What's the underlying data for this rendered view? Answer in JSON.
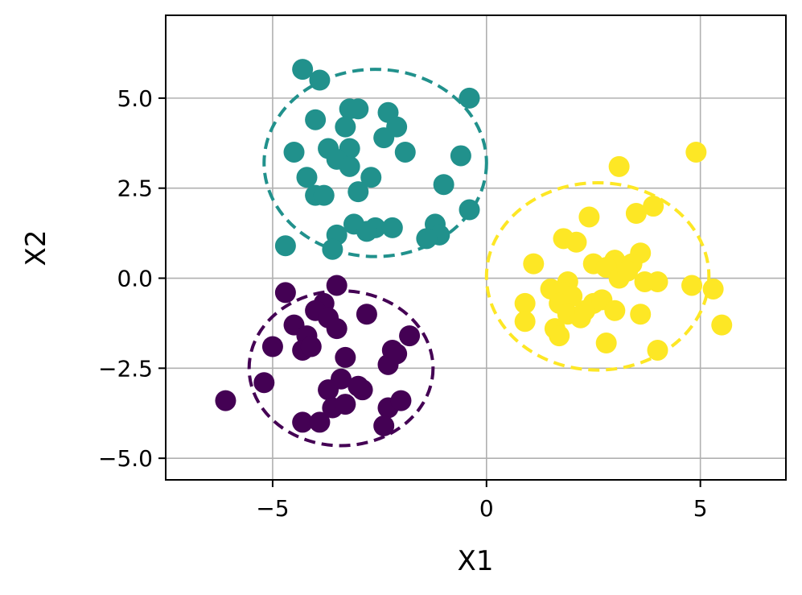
{
  "chart_data": {
    "type": "scatter",
    "title": "",
    "xlabel": "X1",
    "ylabel": "X2",
    "xlim": [
      -7.5,
      7
    ],
    "ylim": [
      -5.6,
      7.3
    ],
    "xticks": [
      -5,
      0,
      5
    ],
    "xtick_labels": [
      "−5",
      "0",
      "5"
    ],
    "yticks": [
      -5,
      -2.5,
      0,
      2.5,
      5
    ],
    "ytick_labels": [
      "−5.0",
      "−2.5",
      "0.0",
      "2.5",
      "5.0"
    ],
    "grid": true,
    "legend": "none",
    "series": [
      {
        "color": "#440154",
        "points": [
          [
            -4.7,
            -0.4
          ],
          [
            -3.5,
            -0.2
          ],
          [
            -3.8,
            -0.7
          ],
          [
            -4.0,
            -0.9
          ],
          [
            -3.7,
            -1.1
          ],
          [
            -4.5,
            -1.3
          ],
          [
            -4.2,
            -1.6
          ],
          [
            -3.5,
            -1.4
          ],
          [
            -2.8,
            -1.0
          ],
          [
            -4.3,
            -2.0
          ],
          [
            -4.1,
            -1.9
          ],
          [
            -5.0,
            -1.9
          ],
          [
            -3.3,
            -2.2
          ],
          [
            -2.2,
            -2.0
          ],
          [
            -1.8,
            -1.6
          ],
          [
            -2.3,
            -2.4
          ],
          [
            -3.4,
            -2.8
          ],
          [
            -3.7,
            -3.1
          ],
          [
            -2.9,
            -3.1
          ],
          [
            -5.2,
            -2.9
          ],
          [
            -6.1,
            -3.4
          ],
          [
            -3.6,
            -3.6
          ],
          [
            -3.3,
            -3.5
          ],
          [
            -2.3,
            -3.6
          ],
          [
            -2.0,
            -3.4
          ],
          [
            -2.4,
            -4.1
          ],
          [
            -4.3,
            -4.0
          ],
          [
            -3.9,
            -4.0
          ],
          [
            -3.0,
            -3.0
          ],
          [
            -2.1,
            -2.1
          ]
        ],
        "circle": {
          "cx": -3.4,
          "cy": -2.5,
          "r": 2.15
        }
      },
      {
        "color": "#21918c",
        "points": [
          [
            -4.3,
            5.8
          ],
          [
            -3.9,
            5.5
          ],
          [
            -3.2,
            4.7
          ],
          [
            -3.0,
            4.7
          ],
          [
            -2.3,
            4.6
          ],
          [
            -2.1,
            4.2
          ],
          [
            -3.3,
            4.2
          ],
          [
            -4.0,
            4.4
          ],
          [
            -0.4,
            5.0
          ],
          [
            -4.5,
            3.5
          ],
          [
            -3.7,
            3.6
          ],
          [
            -3.2,
            3.6
          ],
          [
            -2.4,
            3.9
          ],
          [
            -1.9,
            3.5
          ],
          [
            -3.5,
            3.3
          ],
          [
            -3.2,
            3.1
          ],
          [
            -4.2,
            2.8
          ],
          [
            -2.7,
            2.8
          ],
          [
            -0.6,
            3.4
          ],
          [
            -1.0,
            2.6
          ],
          [
            -3.0,
            2.4
          ],
          [
            -4.0,
            2.3
          ],
          [
            -3.8,
            2.3
          ],
          [
            -0.4,
            1.9
          ],
          [
            -3.1,
            1.5
          ],
          [
            -2.6,
            1.4
          ],
          [
            -2.2,
            1.4
          ],
          [
            -1.2,
            1.5
          ],
          [
            -3.5,
            1.2
          ],
          [
            -1.1,
            1.2
          ],
          [
            -1.4,
            1.1
          ],
          [
            -4.7,
            0.9
          ],
          [
            -3.6,
            0.8
          ],
          [
            -2.8,
            1.3
          ]
        ],
        "circle": {
          "cx": -2.6,
          "cy": 3.2,
          "r": 2.6
        }
      },
      {
        "color": "#fde725",
        "points": [
          [
            4.9,
            3.5
          ],
          [
            3.1,
            3.1
          ],
          [
            3.9,
            2.0
          ],
          [
            3.5,
            1.8
          ],
          [
            2.4,
            1.7
          ],
          [
            1.8,
            1.1
          ],
          [
            2.1,
            1.0
          ],
          [
            3.6,
            0.7
          ],
          [
            1.1,
            0.4
          ],
          [
            2.5,
            0.4
          ],
          [
            3.0,
            0.5
          ],
          [
            3.4,
            0.4
          ],
          [
            2.8,
            0.3
          ],
          [
            3.1,
            0.0
          ],
          [
            3.7,
            -0.1
          ],
          [
            4.0,
            -0.1
          ],
          [
            1.9,
            -0.1
          ],
          [
            1.5,
            -0.3
          ],
          [
            1.8,
            -0.4
          ],
          [
            2.0,
            -0.5
          ],
          [
            4.8,
            -0.2
          ],
          [
            5.3,
            -0.3
          ],
          [
            1.7,
            -0.7
          ],
          [
            0.9,
            -0.7
          ],
          [
            2.5,
            -0.7
          ],
          [
            2.7,
            -0.6
          ],
          [
            3.0,
            -0.9
          ],
          [
            1.9,
            -1.0
          ],
          [
            2.2,
            -1.1
          ],
          [
            0.9,
            -1.2
          ],
          [
            3.6,
            -1.0
          ],
          [
            1.6,
            -1.4
          ],
          [
            1.7,
            -1.6
          ],
          [
            2.8,
            -1.8
          ],
          [
            4.0,
            -2.0
          ],
          [
            5.5,
            -1.3
          ],
          [
            2.3,
            -0.9
          ],
          [
            3.3,
            0.2
          ]
        ],
        "circle": {
          "cx": 2.6,
          "cy": 0.05,
          "r": 2.6
        }
      }
    ]
  }
}
